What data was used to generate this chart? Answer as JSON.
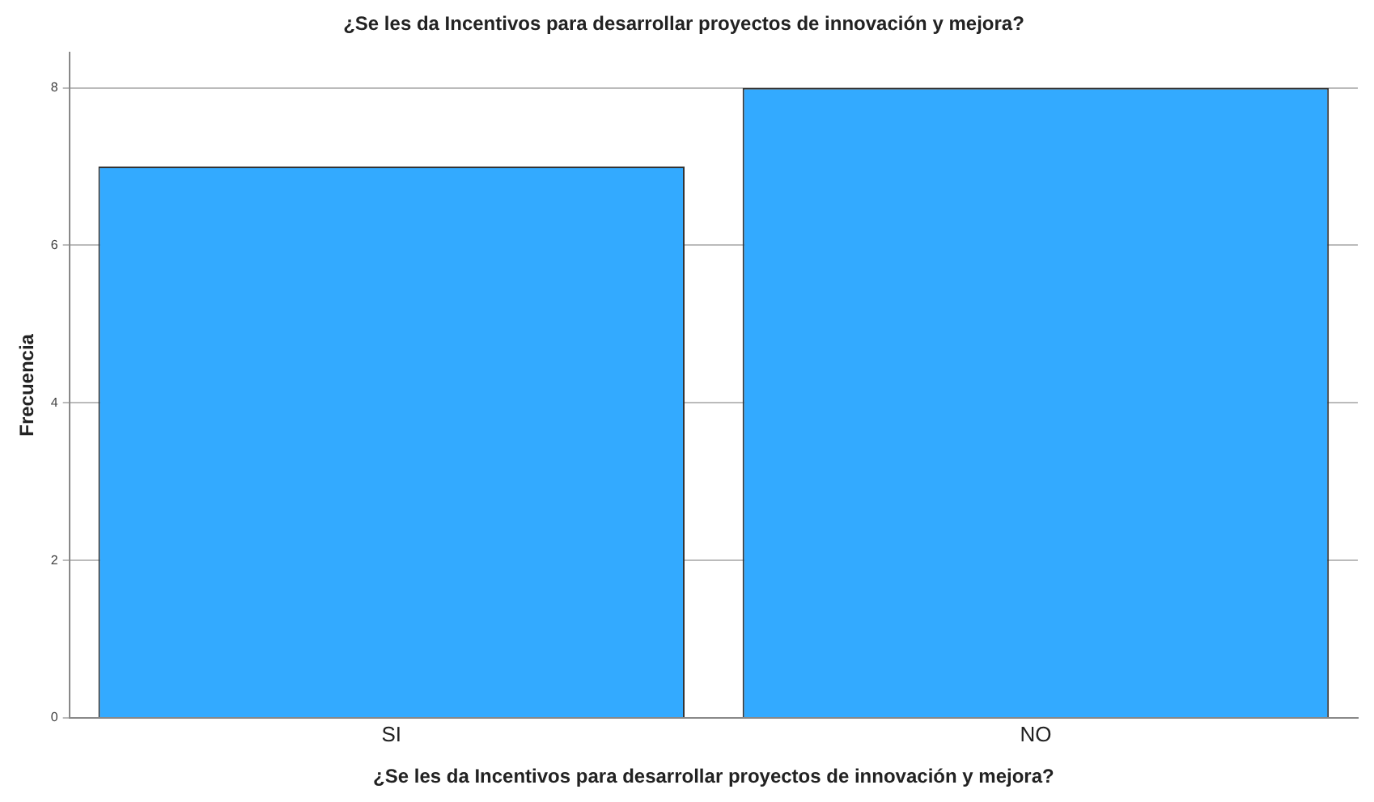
{
  "chart_data": {
    "type": "bar",
    "title": "¿Se les da Incentivos para desarrollar proyectos de innovación y mejora?",
    "xlabel": "¿Se les da Incentivos para desarrollar proyectos de innovación y mejora?",
    "ylabel": "Frecuencia",
    "categories": [
      "SI",
      "NO"
    ],
    "values": [
      7,
      8
    ],
    "color": "#33aaff",
    "ylim": [
      0,
      8.45
    ],
    "yticks": [
      0,
      2,
      4,
      6,
      8
    ],
    "grid": "y",
    "legend": false
  }
}
